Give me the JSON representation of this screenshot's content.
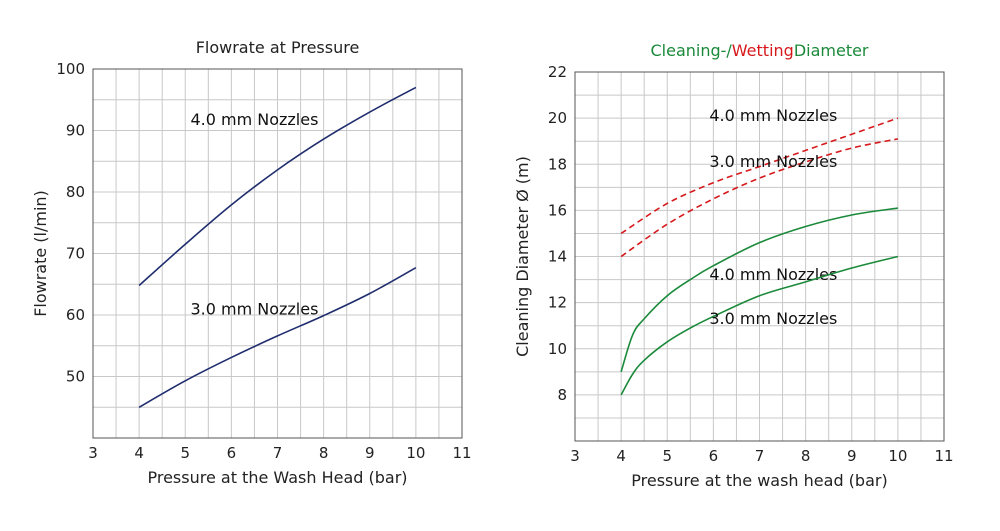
{
  "chart_data": [
    {
      "type": "line",
      "title": "Flowrate at Pressure",
      "xlabel": "Pressure at the Wash Head (bar)",
      "ylabel": "Flowrate (l/min)",
      "xlim": [
        3,
        11
      ],
      "ylim": [
        40,
        100
      ],
      "x_ticks": [
        "3",
        "4",
        "5",
        "6",
        "7",
        "8",
        "9",
        "10",
        "11"
      ],
      "y_ticks": [
        "50",
        "60",
        "70",
        "80",
        "90",
        "100"
      ],
      "grid": true,
      "colors": {
        "series": "#1f2d6e"
      },
      "series": [
        {
          "label": "4.0 mm Nozzles",
          "label_anchor": [
            6.5,
            91.7
          ],
          "x": [
            4,
            5,
            6,
            7,
            8,
            9,
            10
          ],
          "y": [
            64.8,
            71.5,
            77.9,
            83.6,
            88.6,
            93.0,
            97.0
          ]
        },
        {
          "label": "3.0 mm Nozzles",
          "label_anchor": [
            6.5,
            60.9
          ],
          "x": [
            4,
            5,
            6,
            7,
            8,
            9,
            10
          ],
          "y": [
            45.0,
            49.3,
            53.1,
            56.6,
            59.9,
            63.5,
            67.7
          ]
        }
      ]
    },
    {
      "type": "line",
      "title_parts": [
        {
          "text": "Cleaning-/",
          "color": "#1a8a3a"
        },
        {
          "text": "Wetting",
          "color": "#d7191c"
        },
        {
          "text": "Diameter",
          "color": "#1a8a3a"
        }
      ],
      "xlabel": "Pressure at the wash head (bar)",
      "ylabel": "Cleaning Diameter Ø (m)",
      "xlim": [
        3,
        11
      ],
      "ylim": [
        6,
        22
      ],
      "x_ticks": [
        "3",
        "4",
        "5",
        "6",
        "7",
        "8",
        "9",
        "10",
        "11"
      ],
      "y_ticks": [
        "8",
        "10",
        "12",
        "14",
        "16",
        "18",
        "20",
        "22"
      ],
      "grid": true,
      "series": [
        {
          "label": "4.0 mm Nozzles",
          "label_anchor": [
            7.3,
            20.1
          ],
          "style": "dashed",
          "color": "#d7191c",
          "x": [
            4,
            5,
            6,
            7,
            8,
            9,
            10
          ],
          "y": [
            15.0,
            16.3,
            17.2,
            17.9,
            18.6,
            19.3,
            20.0
          ]
        },
        {
          "label": "3.0 mm Nozzles",
          "label_anchor": [
            7.3,
            18.1
          ],
          "style": "dashed",
          "color": "#d7191c",
          "x": [
            4,
            5,
            6,
            7,
            8,
            9,
            10
          ],
          "y": [
            14.0,
            15.4,
            16.5,
            17.4,
            18.1,
            18.7,
            19.1
          ]
        },
        {
          "label": "4.0 mm Nozzles",
          "label_anchor": [
            7.3,
            13.2
          ],
          "style": "solid",
          "color": "#1a8a3a",
          "x": [
            4,
            4.25,
            4.5,
            5,
            5.5,
            6,
            7,
            8,
            9,
            10
          ],
          "y": [
            9.0,
            10.6,
            11.3,
            12.3,
            13.0,
            13.6,
            14.6,
            15.3,
            15.8,
            16.1
          ]
        },
        {
          "label": "3.0 mm Nozzles",
          "label_anchor": [
            7.3,
            11.3
          ],
          "style": "solid",
          "color": "#1a8a3a",
          "x": [
            4,
            4.25,
            4.5,
            5,
            5.5,
            6,
            7,
            8,
            9,
            10
          ],
          "y": [
            8.0,
            8.9,
            9.5,
            10.3,
            10.9,
            11.4,
            12.3,
            12.9,
            13.5,
            14.0
          ]
        }
      ]
    }
  ]
}
